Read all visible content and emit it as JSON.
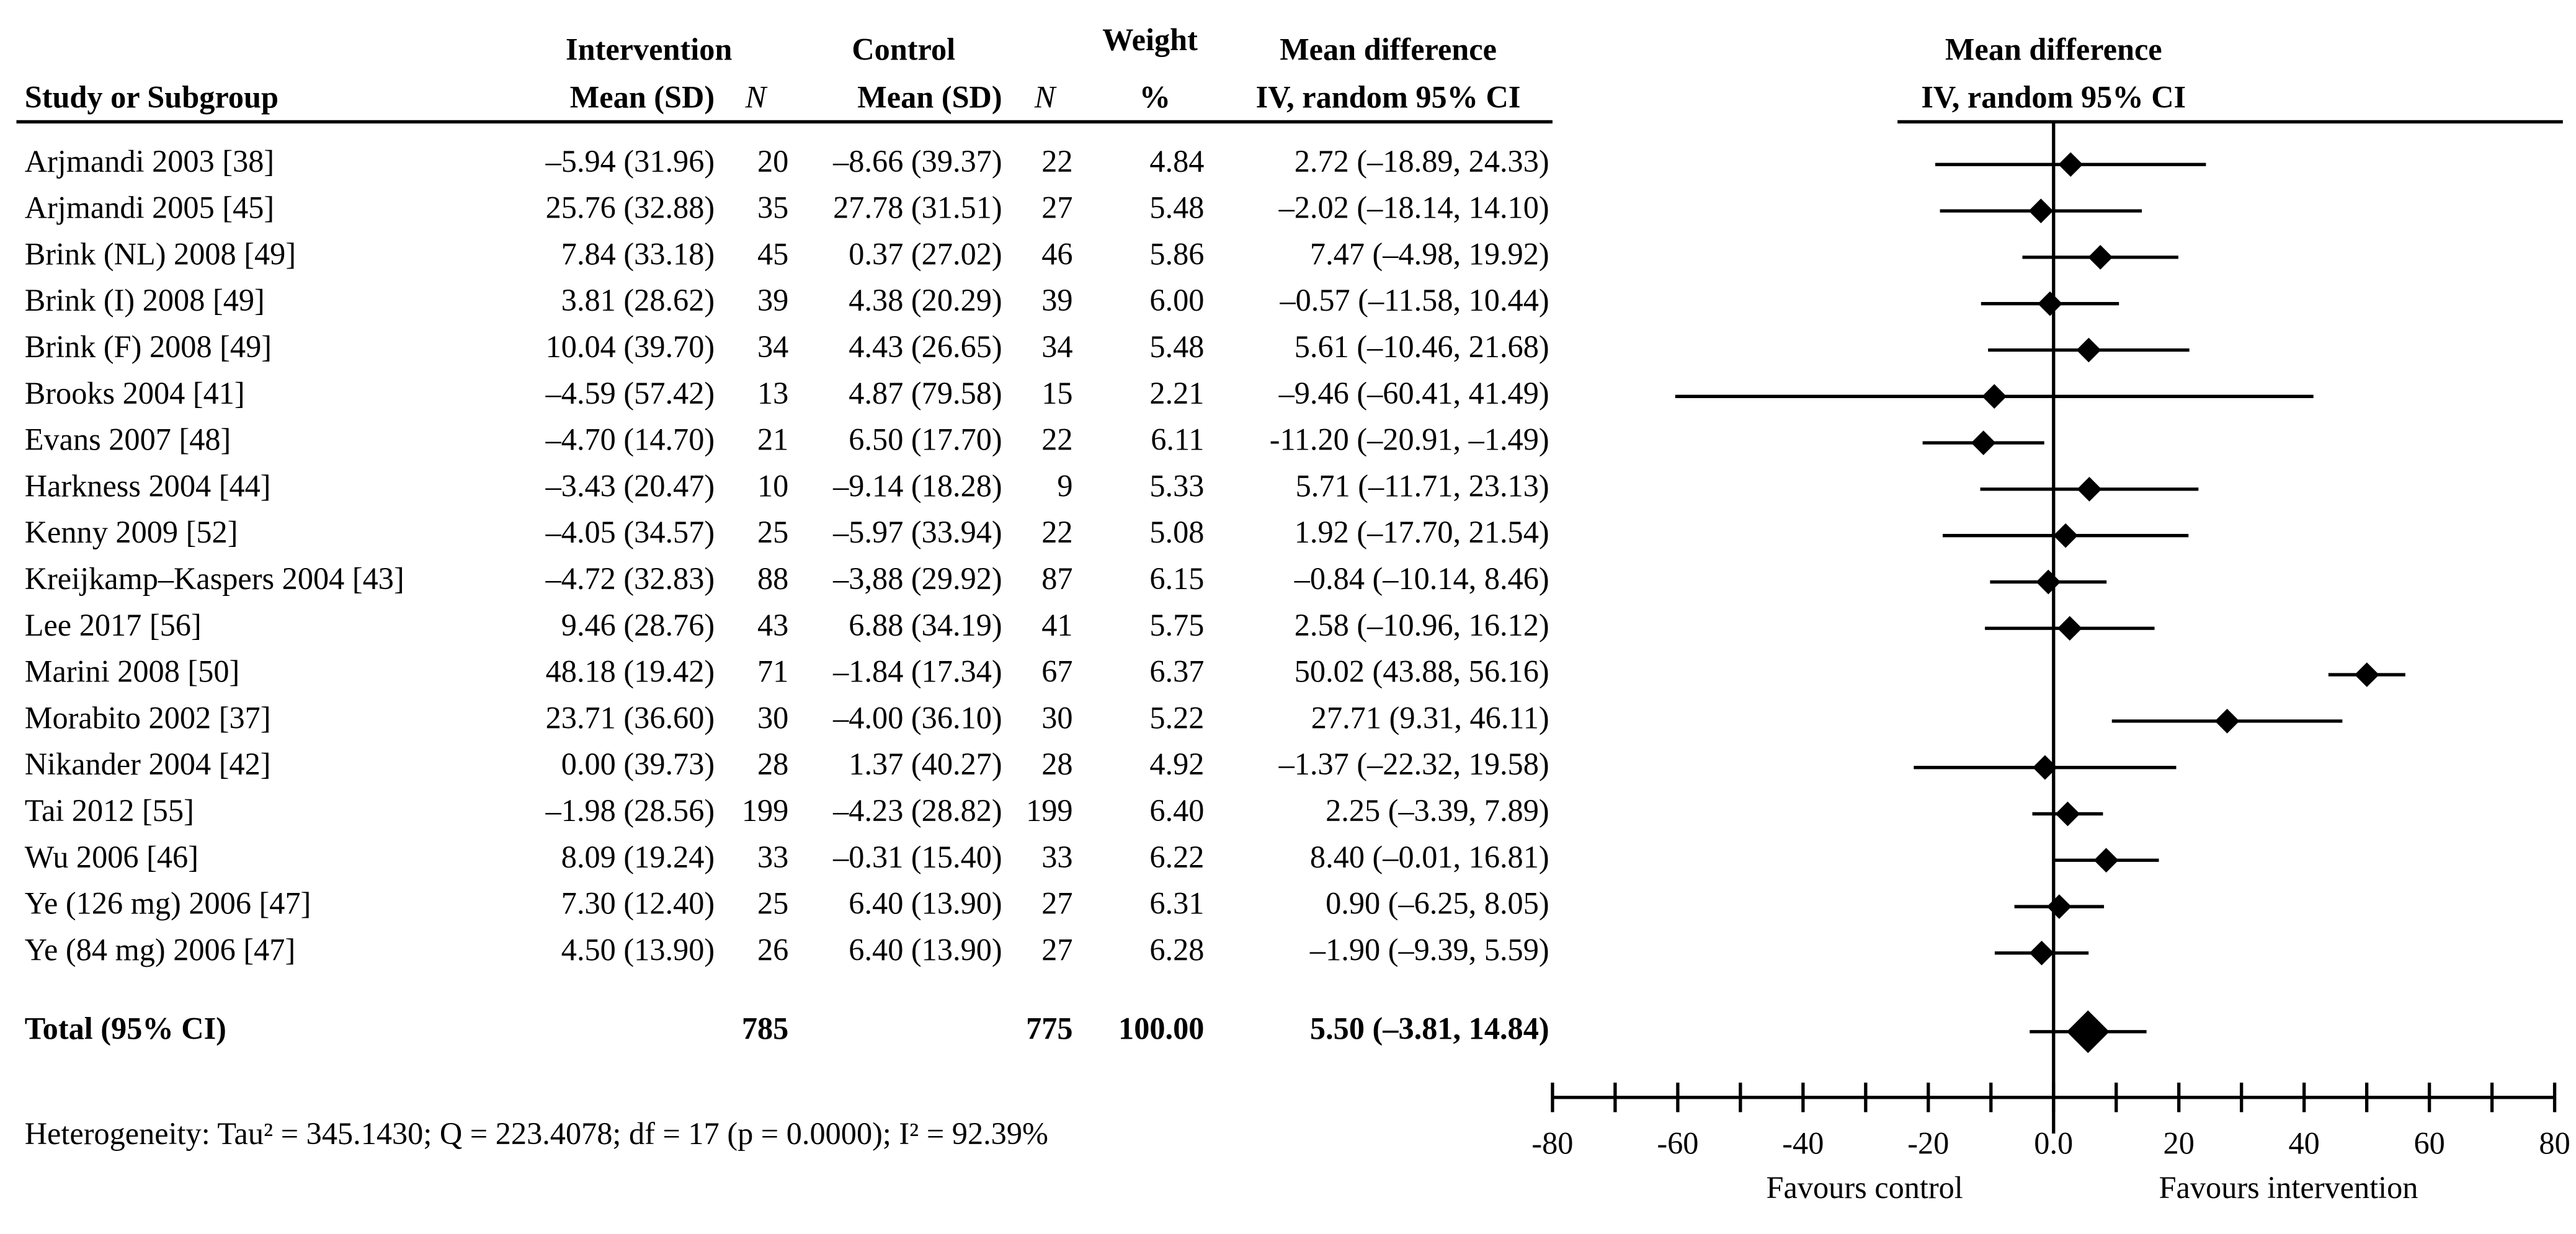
{
  "chart_data": {
    "type": "forest",
    "headers": {
      "study": "Study or Subgroup",
      "intervention": "Intervention",
      "control": "Control",
      "mean_sd": "Mean (SD)",
      "n": "N",
      "weight": "Weight",
      "weight_unit": "%",
      "md": "Mean difference",
      "md_method": "IV, random 95% CI",
      "plot_title": "Mean difference",
      "plot_method": "IV, random 95% CI"
    },
    "studies": [
      {
        "name": "Arjmandi 2003 [38]",
        "int_mean_sd": "–5.94 (31.96)",
        "int_n": 20,
        "ctrl_mean_sd": "–8.66 (39.37)",
        "ctrl_n": 22,
        "weight": "4.84",
        "ci_label": "2.72 (–18.89, 24.33)",
        "md": 2.72,
        "ci": [
          -18.89,
          24.33
        ]
      },
      {
        "name": "Arjmandi 2005 [45]",
        "int_mean_sd": "25.76 (32.88)",
        "int_n": 35,
        "ctrl_mean_sd": "27.78 (31.51)",
        "ctrl_n": 27,
        "weight": "5.48",
        "ci_label": "–2.02 (–18.14, 14.10)",
        "md": -2.02,
        "ci": [
          -18.14,
          14.1
        ]
      },
      {
        "name": "Brink (NL) 2008 [49]",
        "int_mean_sd": "7.84 (33.18)",
        "int_n": 45,
        "ctrl_mean_sd": "0.37 (27.02)",
        "ctrl_n": 46,
        "weight": "5.86",
        "ci_label": "7.47 (–4.98, 19.92)",
        "md": 7.47,
        "ci": [
          -4.98,
          19.92
        ]
      },
      {
        "name": "Brink (I) 2008 [49]",
        "int_mean_sd": "3.81 (28.62)",
        "int_n": 39,
        "ctrl_mean_sd": "4.38 (20.29)",
        "ctrl_n": 39,
        "weight": "6.00",
        "ci_label": "–0.57 (–11.58, 10.44)",
        "md": -0.57,
        "ci": [
          -11.58,
          10.44
        ]
      },
      {
        "name": "Brink (F) 2008 [49]",
        "int_mean_sd": "10.04 (39.70)",
        "int_n": 34,
        "ctrl_mean_sd": "4.43 (26.65)",
        "ctrl_n": 34,
        "weight": "5.48",
        "ci_label": "5.61 (–10.46, 21.68)",
        "md": 5.61,
        "ci": [
          -10.46,
          21.68
        ]
      },
      {
        "name": "Brooks 2004 [41]",
        "int_mean_sd": "–4.59 (57.42)",
        "int_n": 13,
        "ctrl_mean_sd": "4.87 (79.58)",
        "ctrl_n": 15,
        "weight": "2.21",
        "ci_label": "–9.46 (–60.41, 41.49)",
        "md": -9.46,
        "ci": [
          -60.41,
          41.49
        ]
      },
      {
        "name": "Evans 2007 [48]",
        "int_mean_sd": "–4.70 (14.70)",
        "int_n": 21,
        "ctrl_mean_sd": "6.50 (17.70)",
        "ctrl_n": 22,
        "weight": "6.11",
        "ci_label": "-11.20 (–20.91, –1.49)",
        "md": -11.2,
        "ci": [
          -20.91,
          -1.49
        ]
      },
      {
        "name": "Harkness 2004 [44]",
        "int_mean_sd": "–3.43 (20.47)",
        "int_n": 10,
        "ctrl_mean_sd": "–9.14 (18.28)",
        "ctrl_n": 9,
        "weight": "5.33",
        "ci_label": "5.71 (–11.71, 23.13)",
        "md": 5.71,
        "ci": [
          -11.71,
          23.13
        ]
      },
      {
        "name": "Kenny 2009 [52]",
        "int_mean_sd": "–4.05 (34.57)",
        "int_n": 25,
        "ctrl_mean_sd": "–5.97 (33.94)",
        "ctrl_n": 22,
        "weight": "5.08",
        "ci_label": "1.92 (–17.70, 21.54)",
        "md": 1.92,
        "ci": [
          -17.7,
          21.54
        ]
      },
      {
        "name": "Kreijkamp–Kaspers 2004 [43]",
        "int_mean_sd": "–4.72 (32.83)",
        "int_n": 88,
        "ctrl_mean_sd": "–3,88 (29.92)",
        "ctrl_n": 87,
        "weight": "6.15",
        "ci_label": "–0.84 (–10.14, 8.46)",
        "md": -0.84,
        "ci": [
          -10.14,
          8.46
        ]
      },
      {
        "name": "Lee 2017 [56]",
        "int_mean_sd": "9.46 (28.76)",
        "int_n": 43,
        "ctrl_mean_sd": "6.88 (34.19)",
        "ctrl_n": 41,
        "weight": "5.75",
        "ci_label": "2.58 (–10.96, 16.12)",
        "md": 2.58,
        "ci": [
          -10.96,
          16.12
        ]
      },
      {
        "name": "Marini 2008 [50]",
        "int_mean_sd": "48.18 (19.42)",
        "int_n": 71,
        "ctrl_mean_sd": "–1.84 (17.34)",
        "ctrl_n": 67,
        "weight": "6.37",
        "ci_label": "50.02 (43.88, 56.16)",
        "md": 50.02,
        "ci": [
          43.88,
          56.16
        ]
      },
      {
        "name": "Morabito 2002 [37]",
        "int_mean_sd": "23.71 (36.60)",
        "int_n": 30,
        "ctrl_mean_sd": "–4.00 (36.10)",
        "ctrl_n": 30,
        "weight": "5.22",
        "ci_label": "27.71 (9.31, 46.11)",
        "md": 27.71,
        "ci": [
          9.31,
          46.11
        ]
      },
      {
        "name": "Nikander 2004 [42]",
        "int_mean_sd": "0.00 (39.73)",
        "int_n": 28,
        "ctrl_mean_sd": "1.37 (40.27)",
        "ctrl_n": 28,
        "weight": "4.92",
        "ci_label": "–1.37 (–22.32, 19.58)",
        "md": -1.37,
        "ci": [
          -22.32,
          19.58
        ]
      },
      {
        "name": "Tai 2012 [55]",
        "int_mean_sd": "–1.98 (28.56)",
        "int_n": 199,
        "ctrl_mean_sd": "–4.23 (28.82)",
        "ctrl_n": 199,
        "weight": "6.40",
        "ci_label": "2.25 (–3.39, 7.89)",
        "md": 2.25,
        "ci": [
          -3.39,
          7.89
        ]
      },
      {
        "name": "Wu 2006 [46]",
        "int_mean_sd": "8.09 (19.24)",
        "int_n": 33,
        "ctrl_mean_sd": "–0.31 (15.40)",
        "ctrl_n": 33,
        "weight": "6.22",
        "ci_label": "8.40 (–0.01, 16.81)",
        "md": 8.4,
        "ci": [
          -0.01,
          16.81
        ]
      },
      {
        "name": "Ye (126 mg) 2006 [47]",
        "int_mean_sd": "7.30 (12.40)",
        "int_n": 25,
        "ctrl_mean_sd": "6.40 (13.90)",
        "ctrl_n": 27,
        "weight": "6.31",
        "ci_label": "0.90 (–6.25, 8.05)",
        "md": 0.9,
        "ci": [
          -6.25,
          8.05
        ]
      },
      {
        "name": "Ye (84 mg) 2006 [47]",
        "int_mean_sd": "4.50 (13.90)",
        "int_n": 26,
        "ctrl_mean_sd": "6.40 (13.90)",
        "ctrl_n": 27,
        "weight": "6.28",
        "ci_label": "–1.90 (–9.39, 5.59)",
        "md": -1.9,
        "ci": [
          -9.39,
          5.59
        ]
      }
    ],
    "total": {
      "name": "Total (95% CI)",
      "int_n": 785,
      "ctrl_n": 775,
      "weight": "100.00",
      "ci_label": "5.50 (–3.81, 14.84)",
      "md": 5.5,
      "ci": [
        -3.81,
        14.84
      ]
    },
    "heterogeneity": "Heterogeneity: Tau² = 345.1430; Q = 223.4078; df = 17 (p = 0.0000); I² = 92.39%",
    "xlim": [
      -80,
      80
    ],
    "xticks": [
      -80,
      -60,
      -40,
      -20,
      {
        "value": 0,
        "label": "0.0"
      },
      20,
      40,
      60,
      80
    ],
    "xticks_minor": [
      -70,
      -50,
      -30,
      -10,
      10,
      30,
      50,
      70
    ],
    "favours_left": "Favours control",
    "favours_right": "Favours intervention",
    "color": "#000000"
  }
}
